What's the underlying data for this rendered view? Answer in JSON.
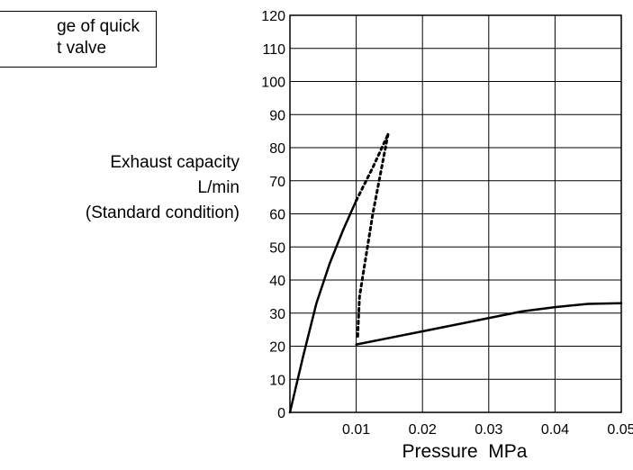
{
  "chart_data": {
    "type": "line",
    "title": "",
    "xlabel": "Pressure  MPa",
    "ylabel_lines": [
      "Exhaust capacity",
      "L/min",
      "(Standard condition)"
    ],
    "legend_text_lines": [
      "ge of quick",
      "t valve"
    ],
    "xlim": [
      0,
      0.05
    ],
    "ylim": [
      0,
      120
    ],
    "x_ticks": [
      0.01,
      0.02,
      0.03,
      0.04,
      0.05
    ],
    "x_tick_labels": [
      "0.01",
      "0.02",
      "0.03",
      "0.04",
      "0.05"
    ],
    "y_ticks": [
      0,
      10,
      20,
      30,
      40,
      50,
      60,
      70,
      80,
      90,
      100,
      110,
      120
    ],
    "y_tick_labels": [
      "0",
      "10",
      "20",
      "30",
      "40",
      "50",
      "60",
      "70",
      "80",
      "90",
      "100",
      "110",
      "120"
    ],
    "grid": true,
    "series": [
      {
        "style": "solid",
        "x": [
          0,
          0.002,
          0.004,
          0.006,
          0.008,
          0.01
        ],
        "y": [
          0,
          17,
          33,
          45,
          55,
          64
        ]
      },
      {
        "style": "solid",
        "x": [
          0.01,
          0.015,
          0.02,
          0.025,
          0.03,
          0.035,
          0.04,
          0.045,
          0.05
        ],
        "y": [
          20.5,
          22.5,
          24.5,
          26.5,
          28.5,
          30.5,
          31.8,
          32.8,
          33
        ]
      },
      {
        "style": "dotted",
        "x": [
          0.01,
          0.0125,
          0.0148
        ],
        "y": [
          64,
          74,
          84
        ]
      },
      {
        "style": "dotted",
        "x": [
          0.0148,
          0.0125,
          0.0105,
          0.0102
        ],
        "y": [
          84,
          60,
          35,
          22
        ]
      }
    ],
    "colors": {
      "line": "#000000",
      "grid": "#000000"
    }
  }
}
